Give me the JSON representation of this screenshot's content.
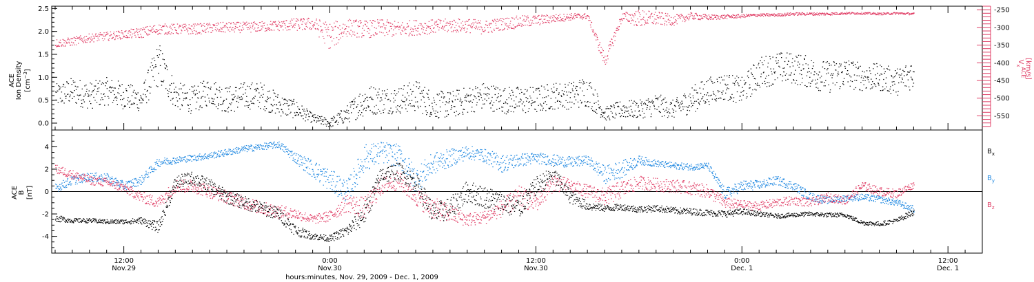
{
  "colors": {
    "density": "#000000",
    "speed": "#e03c64",
    "bx": "#000000",
    "by": "#1a85e0",
    "bz": "#e03c64",
    "axis": "#000000"
  },
  "chart_data": [
    {
      "type": "scatter",
      "panel": "top",
      "x_unit": "hours from 2009-11-29 00:00 UT",
      "xlim": [
        7.8,
        62.0
      ],
      "left_axis": {
        "label_lines": [
          "ACE",
          "Ion Density"
        ],
        "unit_base": "[cm",
        "unit_sup": "−3",
        "unit_close": "]",
        "ylim": [
          -0.15,
          2.55
        ],
        "ticks": [
          0.0,
          0.5,
          1.0,
          1.5,
          2.0,
          2.5
        ],
        "tick_labels": [
          "0.0",
          "0.5",
          "1.0",
          "1.5",
          "2.0",
          "2.5"
        ]
      },
      "right_axis": {
        "label_base": "V",
        "label_sub": "x",
        "label_super": "ACE",
        "unit": "[km/s]",
        "ylim": [
          -590,
          -240
        ],
        "ticks": [
          -250,
          -300,
          -350,
          -400,
          -450,
          -500,
          -550
        ],
        "tick_labels": [
          "-250",
          "-300",
          "-350",
          "-400",
          "-450",
          "-500",
          "-550"
        ]
      },
      "series": [
        {
          "key": "density",
          "x": [
            8,
            9,
            10,
            11,
            12,
            13,
            14,
            15,
            16,
            17,
            18,
            19,
            20,
            21,
            22,
            23,
            24,
            25,
            26,
            27,
            28,
            29,
            30,
            31,
            32,
            33,
            34,
            35,
            36,
            37,
            38,
            39,
            40,
            41,
            42,
            43,
            44,
            45,
            46,
            47,
            48,
            49,
            50,
            51,
            52,
            53,
            54,
            55,
            56,
            57,
            58
          ],
          "y": [
            0.6,
            0.7,
            0.6,
            0.7,
            0.6,
            0.5,
            1.3,
            0.6,
            0.5,
            0.7,
            0.5,
            0.6,
            0.6,
            0.4,
            0.3,
            0.1,
            0.0,
            0.2,
            0.5,
            0.5,
            0.5,
            0.6,
            0.4,
            0.4,
            0.5,
            0.6,
            0.5,
            0.5,
            0.5,
            0.6,
            0.6,
            0.7,
            0.2,
            0.3,
            0.3,
            0.4,
            0.3,
            0.5,
            0.7,
            0.8,
            0.7,
            1.1,
            1.2,
            1.2,
            1.1,
            1.0,
            1.1,
            1.0,
            1.0,
            0.9,
            1.1
          ],
          "spread": [
            0.25,
            0.3,
            0.3,
            0.3,
            0.3,
            0.25,
            0.5,
            0.3,
            0.3,
            0.3,
            0.3,
            0.3,
            0.3,
            0.25,
            0.2,
            0.1,
            0.1,
            0.2,
            0.35,
            0.3,
            0.3,
            0.35,
            0.3,
            0.3,
            0.3,
            0.3,
            0.3,
            0.3,
            0.3,
            0.3,
            0.3,
            0.35,
            0.15,
            0.2,
            0.2,
            0.25,
            0.2,
            0.3,
            0.3,
            0.3,
            0.3,
            0.35,
            0.35,
            0.35,
            0.35,
            0.35,
            0.35,
            0.3,
            0.3,
            0.3,
            0.35
          ]
        },
        {
          "key": "speed",
          "x": [
            8,
            9,
            10,
            11,
            12,
            13,
            14,
            15,
            16,
            17,
            18,
            19,
            20,
            21,
            22,
            23,
            24,
            25,
            26,
            27,
            28,
            29,
            30,
            31,
            32,
            33,
            34,
            35,
            36,
            37,
            38,
            39,
            40,
            41,
            42,
            43,
            44,
            45,
            46,
            47,
            48,
            49,
            50,
            51,
            52,
            53,
            54,
            55,
            56,
            57,
            58
          ],
          "y": [
            -345,
            -340,
            -330,
            -325,
            -320,
            -315,
            -305,
            -305,
            -305,
            -302,
            -300,
            -300,
            -298,
            -295,
            -292,
            -290,
            -325,
            -300,
            -305,
            -302,
            -305,
            -300,
            -298,
            -295,
            -295,
            -300,
            -290,
            -285,
            -280,
            -275,
            -270,
            -268,
            -395,
            -270,
            -275,
            -275,
            -280,
            -268,
            -272,
            -270,
            -268,
            -265,
            -265,
            -262,
            -262,
            -262,
            -260,
            -260,
            -262,
            -260,
            -262
          ],
          "spread": [
            12,
            12,
            12,
            12,
            12,
            15,
            15,
            15,
            15,
            15,
            15,
            15,
            15,
            15,
            18,
            18,
            40,
            25,
            25,
            25,
            22,
            22,
            20,
            20,
            20,
            20,
            18,
            18,
            15,
            12,
            10,
            8,
            20,
            12,
            25,
            20,
            15,
            10,
            8,
            6,
            5,
            4,
            4,
            4,
            4,
            4,
            3,
            3,
            3,
            3,
            3
          ]
        }
      ]
    },
    {
      "type": "scatter",
      "panel": "bottom",
      "x_unit": "hours from 2009-11-29 00:00 UT",
      "xlim": [
        7.8,
        62.0
      ],
      "ylim": [
        -5.5,
        5.5
      ],
      "ylabel_lines": [
        "ACE",
        "B"
      ],
      "yunit": "[nT]",
      "ticks": [
        -4,
        -2,
        0,
        2,
        4
      ],
      "tick_labels": [
        "-4",
        "-2",
        "0",
        "2",
        "4"
      ],
      "zero_line": true,
      "legend_placement": "right",
      "series": [
        {
          "key": "bx",
          "label_base": "B",
          "label_sub": "x",
          "x": [
            8,
            9,
            10,
            11,
            12,
            13,
            14,
            15,
            16,
            17,
            18,
            19,
            20,
            21,
            22,
            23,
            24,
            25,
            26,
            27,
            28,
            29,
            30,
            31,
            32,
            33,
            34,
            35,
            36,
            37,
            38,
            39,
            40,
            41,
            42,
            43,
            44,
            45,
            46,
            47,
            48,
            49,
            50,
            51,
            52,
            53,
            54,
            55,
            56,
            57,
            58
          ],
          "y": [
            -2.4,
            -2.6,
            -2.6,
            -2.7,
            -2.7,
            -2.6,
            -3.2,
            0.8,
            1.2,
            0.5,
            -0.5,
            -1.0,
            -1.5,
            -2.0,
            -3.5,
            -4.0,
            -4.2,
            -3.5,
            -2.0,
            1.5,
            1.8,
            0.8,
            -2.0,
            -1.5,
            0.0,
            -0.5,
            -1.0,
            -1.5,
            0.5,
            1.5,
            -0.5,
            -1.3,
            -1.5,
            -1.4,
            -1.6,
            -1.5,
            -1.7,
            -1.8,
            -1.9,
            -2.0,
            -1.8,
            -2.0,
            -2.2,
            -2.1,
            -2.0,
            -2.1,
            -2.1,
            -2.8,
            -2.9,
            -2.6,
            -1.8
          ],
          "spread": [
            0.3,
            0.2,
            0.2,
            0.2,
            0.2,
            0.3,
            0.5,
            0.6,
            0.6,
            0.6,
            0.6,
            0.6,
            0.6,
            0.6,
            0.5,
            0.3,
            0.3,
            0.5,
            1.0,
            0.8,
            0.8,
            0.8,
            1.0,
            1.0,
            1.0,
            1.0,
            1.0,
            1.0,
            0.8,
            0.8,
            0.6,
            0.4,
            0.3,
            0.3,
            0.3,
            0.3,
            0.3,
            0.3,
            0.3,
            0.3,
            0.3,
            0.2,
            0.2,
            0.2,
            0.2,
            0.2,
            0.2,
            0.2,
            0.2,
            0.2,
            0.3
          ]
        },
        {
          "key": "by",
          "label_base": "B",
          "label_sub": "y",
          "x": [
            8,
            9,
            10,
            11,
            12,
            13,
            14,
            15,
            16,
            17,
            18,
            19,
            20,
            21,
            22,
            23,
            24,
            25,
            26,
            27,
            28,
            29,
            30,
            31,
            32,
            33,
            34,
            35,
            36,
            37,
            38,
            39,
            40,
            41,
            42,
            43,
            44,
            45,
            46,
            47,
            48,
            49,
            50,
            51,
            52,
            53,
            54,
            55,
            56,
            57,
            58
          ],
          "y": [
            0.3,
            1.0,
            1.3,
            1.2,
            0.5,
            1.0,
            2.6,
            2.8,
            3.0,
            3.2,
            3.5,
            3.8,
            4.0,
            4.2,
            3.0,
            2.0,
            1.0,
            0.0,
            3.0,
            3.5,
            3.2,
            1.0,
            2.5,
            3.0,
            3.5,
            3.2,
            2.5,
            2.8,
            3.0,
            2.8,
            2.6,
            2.8,
            1.5,
            2.0,
            2.8,
            2.5,
            2.3,
            2.2,
            2.3,
            -0.2,
            0.5,
            0.6,
            1.0,
            0.5,
            -0.5,
            -0.8,
            -0.6,
            -0.5,
            -0.7,
            -1.0,
            -1.6
          ],
          "spread": [
            0.4,
            0.4,
            0.4,
            0.4,
            0.4,
            0.4,
            0.4,
            0.3,
            0.3,
            0.3,
            0.3,
            0.3,
            0.3,
            0.3,
            0.5,
            0.8,
            1.0,
            1.0,
            1.2,
            1.0,
            1.0,
            1.2,
            1.0,
            0.8,
            0.6,
            0.6,
            0.8,
            0.6,
            0.5,
            0.5,
            0.5,
            0.4,
            0.8,
            0.8,
            0.4,
            0.3,
            0.3,
            0.3,
            0.3,
            0.5,
            0.5,
            0.4,
            0.4,
            0.4,
            0.4,
            0.3,
            0.3,
            0.3,
            0.3,
            0.3,
            0.3
          ]
        },
        {
          "key": "bz",
          "label_base": "B",
          "label_sub": "z",
          "x": [
            8,
            9,
            10,
            11,
            12,
            13,
            14,
            15,
            16,
            17,
            18,
            19,
            20,
            21,
            22,
            23,
            24,
            25,
            26,
            27,
            28,
            29,
            30,
            31,
            32,
            33,
            34,
            35,
            36,
            37,
            38,
            39,
            40,
            41,
            42,
            43,
            44,
            45,
            46,
            47,
            48,
            49,
            50,
            51,
            52,
            53,
            54,
            55,
            56,
            57,
            58
          ],
          "y": [
            2.0,
            1.5,
            1.0,
            0.8,
            0.3,
            -0.5,
            -1.0,
            0.5,
            0.5,
            0.0,
            -0.5,
            -1.0,
            -1.5,
            -1.8,
            -2.0,
            -2.5,
            -2.2,
            -1.0,
            -1.5,
            0.5,
            1.0,
            -0.5,
            -1.5,
            -2.0,
            -2.5,
            -2.3,
            -1.5,
            -0.5,
            -1.0,
            0.8,
            0.5,
            0.0,
            -0.5,
            0.2,
            0.8,
            0.6,
            0.5,
            0.3,
            0.0,
            -1.0,
            -1.2,
            -1.3,
            -1.0,
            -0.8,
            -1.0,
            -0.5,
            -0.8,
            0.5,
            0.0,
            -0.2,
            0.6
          ],
          "spread": [
            0.4,
            0.4,
            0.4,
            0.4,
            0.4,
            0.5,
            0.5,
            0.6,
            0.6,
            0.6,
            0.6,
            0.6,
            0.6,
            0.6,
            0.5,
            0.4,
            0.5,
            0.8,
            1.0,
            0.8,
            0.8,
            0.8,
            1.0,
            0.8,
            0.6,
            0.6,
            0.8,
            1.0,
            0.8,
            0.8,
            0.6,
            0.6,
            0.8,
            0.8,
            0.6,
            0.6,
            0.6,
            0.6,
            0.6,
            0.5,
            0.4,
            0.4,
            0.4,
            0.4,
            0.4,
            0.4,
            0.4,
            0.4,
            0.4,
            0.4,
            0.3
          ]
        }
      ]
    }
  ],
  "x_axis": {
    "major_ticks": [
      12,
      24,
      36,
      48,
      60
    ],
    "tick_labels_line1": [
      "12:00",
      "0:00",
      "12:00",
      "0:00",
      "12:00"
    ],
    "tick_labels_line2": [
      "Nov.29",
      "Nov.30",
      "Nov.30",
      "Dec. 1",
      "Dec. 1"
    ],
    "minor_step": 1,
    "title": "hours:minutes, Nov. 29, 2009 - Dec. 1, 2009"
  }
}
